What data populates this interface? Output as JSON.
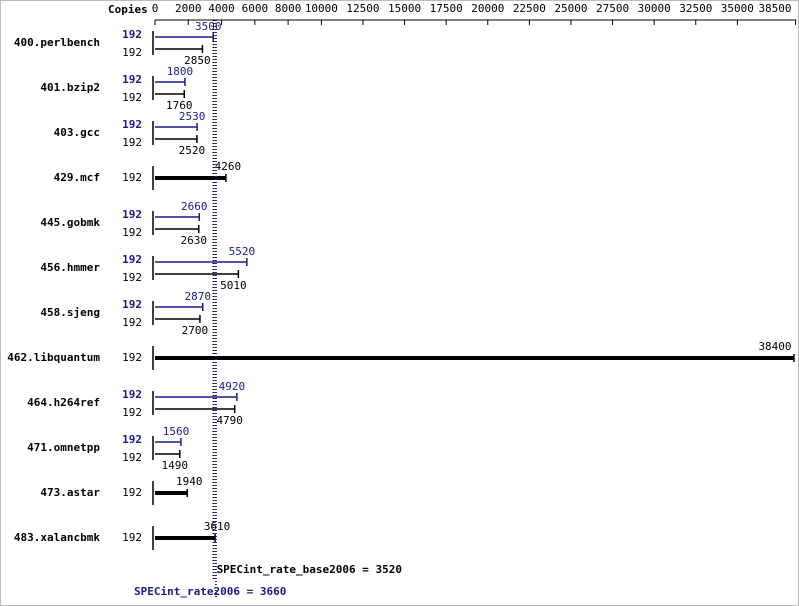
{
  "chart_data": {
    "type": "spec-bar",
    "header": "Copies",
    "benchmarks": [
      "400.perlbench",
      "401.bzip2",
      "403.gcc",
      "429.mcf",
      "445.gobmk",
      "456.hmmer",
      "458.sjeng",
      "462.libquantum",
      "464.h264ref",
      "471.omnetpp",
      "473.astar",
      "483.xalancbmk"
    ],
    "base_copies": [
      192,
      192,
      192,
      192,
      192,
      192,
      192,
      192,
      192,
      192,
      192,
      192
    ],
    "peak_copies": [
      192,
      192,
      192,
      null,
      192,
      192,
      192,
      null,
      192,
      192,
      null,
      null
    ],
    "base_values": [
      2850,
      1760,
      2520,
      4260,
      2630,
      5010,
      2700,
      38400,
      4790,
      1490,
      1940,
      3610
    ],
    "peak_values": [
      3500,
      1800,
      2530,
      null,
      2660,
      5520,
      2870,
      null,
      4920,
      1560,
      null,
      null
    ],
    "base_color": "#000000",
    "peak_color": "#1a1a8c",
    "xlim": [
      0,
      38500
    ],
    "xticks": [
      0,
      2000,
      4000,
      6000,
      8000,
      10000,
      12500,
      15000,
      17500,
      20000,
      22500,
      25000,
      27500,
      30000,
      32500,
      35000,
      38500
    ],
    "reference_lines": [
      {
        "label": "SPECint_rate_base2006 = 3520",
        "value": 3520,
        "color": "#000000"
      },
      {
        "label": "SPECint_rate2006 = 3660",
        "value": 3660,
        "color": "#1a1a8c"
      }
    ]
  }
}
